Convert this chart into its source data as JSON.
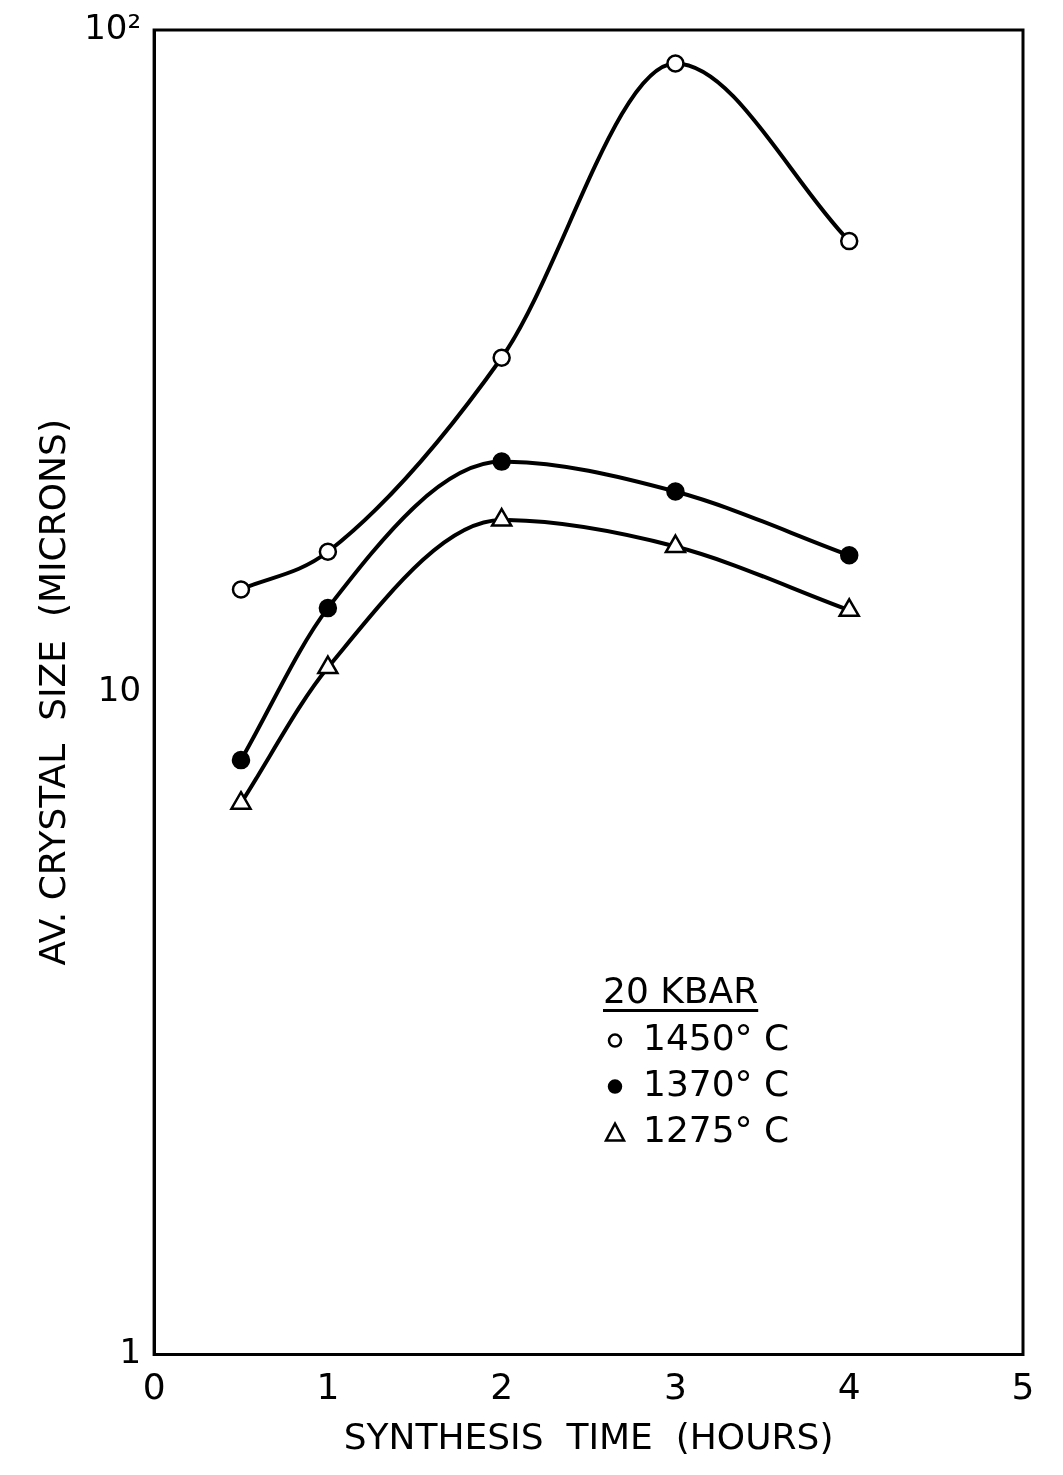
{
  "chart_data": {
    "type": "line",
    "xlabel": "SYNTHESIS  TIME  (HOURS)",
    "ylabel": "AV. CRYSTAL  SIZE  (MICRONS)",
    "legend_title": "20 KBAR",
    "legend": "bottom right",
    "log": "y",
    "grid": false,
    "line_style": "solid",
    "xlim": [
      0,
      5
    ],
    "xticks": [
      0,
      1,
      2,
      3,
      4,
      5
    ],
    "ylim": [
      1,
      100
    ],
    "yticks": [
      1,
      10,
      {
        "value": 100,
        "label": "10²"
      }
    ],
    "series": [
      {
        "name": "1450° C",
        "color": "#000000",
        "marker": "circle-open",
        "x": [
          0.5,
          1,
          2,
          3,
          4
        ],
        "values": [
          14.3,
          16.3,
          32,
          89,
          48
        ]
      },
      {
        "name": "1370° C",
        "color": "#000000",
        "marker": "circle",
        "x": [
          0.5,
          1,
          2,
          3,
          4
        ],
        "values": [
          7.9,
          13.4,
          22.3,
          20.1,
          16.1
        ]
      },
      {
        "name": "1275° C",
        "color": "#000000",
        "marker": "triangle-open",
        "x": [
          0.5,
          1,
          2,
          3,
          4
        ],
        "values": [
          6.8,
          10.9,
          18.2,
          16.6,
          13.3
        ]
      }
    ]
  }
}
